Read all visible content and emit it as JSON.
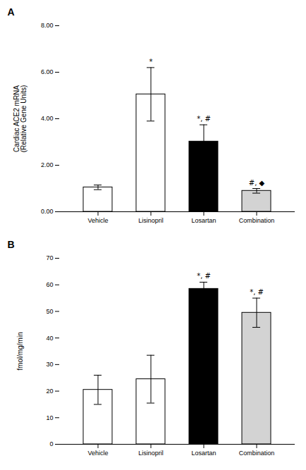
{
  "chart_data": [
    {
      "type": "bar",
      "title": "A",
      "categories": [
        "Vehicle",
        "Lisinopril",
        "Losartan",
        "Combination"
      ],
      "values": [
        1.05,
        5.05,
        3.02,
        0.9
      ],
      "errors": [
        0.1,
        1.15,
        0.72,
        0.1
      ],
      "ylabel": "Cardiac ACE2 mRNA\n(Relative Gene Units)",
      "ylim": [
        0,
        8.0
      ],
      "yticks": [
        {
          "value": 0,
          "label": "0.00"
        },
        {
          "value": 2,
          "label": "2.00"
        },
        {
          "value": 4,
          "label": "4.00"
        },
        {
          "value": 6,
          "label": "6.00"
        },
        {
          "value": 8,
          "label": "8.00"
        }
      ],
      "annotations": [
        null,
        "*",
        "*, #",
        "#, ◆"
      ],
      "colors": [
        "white",
        "white",
        "black",
        "lightgray"
      ],
      "grid": false
    },
    {
      "type": "bar",
      "title": "B",
      "categories": [
        "Vehicle",
        "Lisinopril",
        "Losartan",
        "Combination"
      ],
      "values": [
        20.5,
        24.5,
        58.5,
        49.5
      ],
      "errors": [
        5.5,
        9.0,
        2.5,
        5.5
      ],
      "ylabel": "fmol/mg/min",
      "ylim": [
        0,
        70
      ],
      "yticks": [
        0,
        10,
        20,
        30,
        40,
        50,
        60,
        70
      ],
      "annotations": [
        null,
        null,
        "*, #",
        "*, #"
      ],
      "colors": [
        "white",
        "white",
        "black",
        "lightgray"
      ],
      "grid": false
    }
  ]
}
